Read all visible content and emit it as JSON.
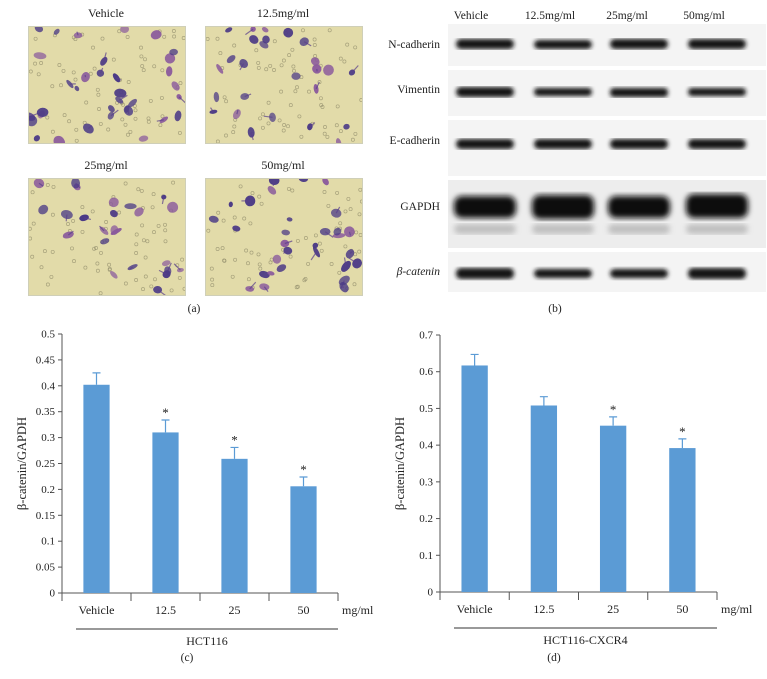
{
  "panel_a": {
    "letter": "(a)",
    "labels": [
      "Vehicle",
      "12.5mg/ml",
      "25mg/ml",
      "50mg/ml"
    ]
  },
  "panel_b": {
    "letter": "(b)",
    "columns": [
      "Vehicle",
      "12.5mg/ml",
      "25mg/ml",
      "50mg/ml"
    ],
    "rows": [
      "N-cadherin",
      "Vimentin",
      "E-cadherin",
      "GAPDH",
      "β-catenin"
    ],
    "colors": {
      "background": "#f4f4f4",
      "band": "#141414"
    }
  },
  "panel_c": {
    "letter": "(c)"
  },
  "panel_d": {
    "letter": "(d)"
  },
  "chart_data": [
    {
      "type": "bar",
      "categories": [
        "Vehicle",
        "12.5",
        "25",
        "50"
      ],
      "values": [
        0.402,
        0.31,
        0.259,
        0.206
      ],
      "errors": [
        0.023,
        0.024,
        0.022,
        0.018
      ],
      "significant": [
        false,
        true,
        true,
        true
      ],
      "significance_mark": "*",
      "ylabel": "β-catenin/GAPDH",
      "x_unit": "mg/ml",
      "group_label": "HCT116",
      "ylim": [
        0,
        0.5
      ],
      "yticks": [
        "0",
        "0.05",
        "0.1",
        "0.15",
        "0.2",
        "0.25",
        "0.3",
        "0.35",
        "0.4",
        "0.45",
        "0.5"
      ],
      "color": "#5b9bd5",
      "grid": false
    },
    {
      "type": "bar",
      "categories": [
        "Vehicle",
        "12.5",
        "25",
        "50"
      ],
      "values": [
        0.617,
        0.508,
        0.453,
        0.392
      ],
      "errors": [
        0.03,
        0.024,
        0.024,
        0.025
      ],
      "significant": [
        false,
        false,
        true,
        true
      ],
      "significance_mark": "*",
      "ylabel": "β-catenin/GAPDH",
      "x_unit": "mg/ml",
      "group_label": "HCT116-CXCR4",
      "ylim": [
        0,
        0.7
      ],
      "yticks": [
        "0",
        "0.1",
        "0.2",
        "0.3",
        "0.4",
        "0.5",
        "0.6",
        "0.7"
      ],
      "color": "#5b9bd5",
      "grid": false
    }
  ]
}
